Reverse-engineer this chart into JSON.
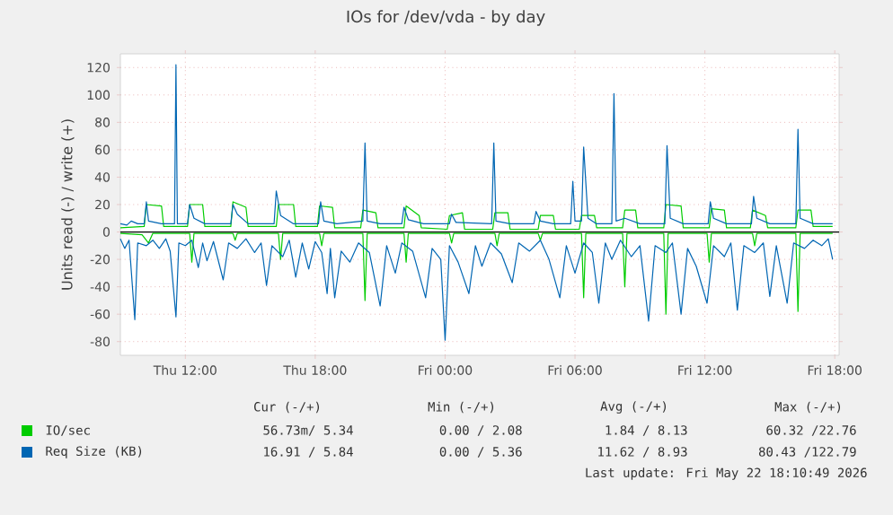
{
  "chart_data": {
    "type": "line",
    "title": "IOs for /dev/vda - by day",
    "ylabel": "Units read (-) / write (+)",
    "xlim": [
      "2026-05-21T09:00",
      "2026-05-22T18:12"
    ],
    "ylim": [
      -90,
      130
    ],
    "xticks": [
      {
        "value": "2026-05-21T12:00",
        "label": "Thu 12:00"
      },
      {
        "value": "2026-05-21T18:00",
        "label": "Thu 18:00"
      },
      {
        "value": "2026-05-22T00:00",
        "label": "Fri 00:00"
      },
      {
        "value": "2026-05-22T06:00",
        "label": "Fri 06:00"
      },
      {
        "value": "2026-05-22T12:00",
        "label": "Fri 12:00"
      },
      {
        "value": "2026-05-22T18:00",
        "label": "Fri 18:00"
      }
    ],
    "yticks": [
      -80,
      -60,
      -40,
      -20,
      0,
      20,
      40,
      60,
      80,
      100,
      120
    ],
    "grid": true,
    "legend": "bottom",
    "ref_lines": [
      {
        "axis": "y",
        "value": 0,
        "color": "#000000"
      }
    ],
    "series": [
      {
        "name": "IO/sec",
        "color": "#00cc00",
        "x": [
          "2026-05-21T09:00",
          "2026-05-21T10:06",
          "2026-05-21T10:12",
          "2026-05-21T10:54",
          "2026-05-21T11:00",
          "2026-05-21T12:06",
          "2026-05-21T12:12",
          "2026-05-21T12:48",
          "2026-05-21T12:54",
          "2026-05-21T14:06",
          "2026-05-21T14:12",
          "2026-05-21T14:48",
          "2026-05-21T14:54",
          "2026-05-21T16:12",
          "2026-05-21T16:18",
          "2026-05-21T17:00",
          "2026-05-21T17:06",
          "2026-05-21T18:06",
          "2026-05-21T18:12",
          "2026-05-21T18:48",
          "2026-05-21T18:54",
          "2026-05-21T20:06",
          "2026-05-21T20:12",
          "2026-05-21T20:48",
          "2026-05-21T20:54",
          "2026-05-21T22:06",
          "2026-05-21T22:12",
          "2026-05-21T22:48",
          "2026-05-21T22:54",
          "2026-05-22T00:06",
          "2026-05-22T00:12",
          "2026-05-22T00:48",
          "2026-05-22T00:54",
          "2026-05-22T02:12",
          "2026-05-22T02:18",
          "2026-05-22T02:54",
          "2026-05-22T03:00",
          "2026-05-22T04:18",
          "2026-05-22T04:24",
          "2026-05-22T05:00",
          "2026-05-22T05:06",
          "2026-05-22T06:12",
          "2026-05-22T06:18",
          "2026-05-22T06:54",
          "2026-05-22T07:00",
          "2026-05-22T08:12",
          "2026-05-22T08:18",
          "2026-05-22T08:48",
          "2026-05-22T08:54",
          "2026-05-22T10:06",
          "2026-05-22T10:12",
          "2026-05-22T10:54",
          "2026-05-22T11:00",
          "2026-05-22T12:12",
          "2026-05-22T12:18",
          "2026-05-22T12:54",
          "2026-05-22T13:00",
          "2026-05-22T14:06",
          "2026-05-22T14:12",
          "2026-05-22T14:48",
          "2026-05-22T14:54",
          "2026-05-22T16:12",
          "2026-05-22T16:18",
          "2026-05-22T16:54",
          "2026-05-22T17:00",
          "2026-05-22T17:54"
        ],
        "values": [
          3,
          4,
          20,
          19,
          4,
          4,
          20,
          20,
          4,
          4,
          22,
          18,
          4,
          4,
          20,
          20,
          4,
          4,
          19,
          18,
          3,
          3,
          16,
          14,
          3,
          3,
          19,
          12,
          3,
          2,
          12,
          14,
          2,
          2,
          14,
          14,
          2,
          2,
          12,
          12,
          2,
          2,
          12,
          12,
          3,
          3,
          16,
          16,
          3,
          3,
          20,
          19,
          3,
          3,
          17,
          16,
          3,
          3,
          16,
          12,
          3,
          3,
          16,
          16,
          4,
          4
        ]
      },
      {
        "color": "#00cc00",
        "x": [
          "2026-05-21T09:00",
          "2026-05-21T10:00",
          "2026-05-21T10:18",
          "2026-05-21T10:30",
          "2026-05-21T12:12",
          "2026-05-21T12:18",
          "2026-05-21T12:24",
          "2026-05-21T14:12",
          "2026-05-21T14:18",
          "2026-05-21T14:24",
          "2026-05-21T16:18",
          "2026-05-21T16:24",
          "2026-05-21T16:30",
          "2026-05-21T18:12",
          "2026-05-21T18:18",
          "2026-05-21T18:24",
          "2026-05-21T20:12",
          "2026-05-21T20:18",
          "2026-05-21T20:24",
          "2026-05-21T22:06",
          "2026-05-21T22:12",
          "2026-05-21T22:18",
          "2026-05-22T00:12",
          "2026-05-22T00:18",
          "2026-05-22T00:24",
          "2026-05-22T02:18",
          "2026-05-22T02:24",
          "2026-05-22T02:30",
          "2026-05-22T04:18",
          "2026-05-22T04:24",
          "2026-05-22T04:30",
          "2026-05-22T06:18",
          "2026-05-22T06:24",
          "2026-05-22T06:30",
          "2026-05-22T08:12",
          "2026-05-22T08:18",
          "2026-05-22T08:24",
          "2026-05-22T10:06",
          "2026-05-22T10:12",
          "2026-05-22T10:18",
          "2026-05-22T12:06",
          "2026-05-22T12:12",
          "2026-05-22T12:18",
          "2026-05-22T14:12",
          "2026-05-22T14:18",
          "2026-05-22T14:24",
          "2026-05-22T16:12",
          "2026-05-22T16:18",
          "2026-05-22T16:24",
          "2026-05-22T17:54"
        ],
        "values": [
          -1,
          -2,
          -8,
          -1,
          -1,
          -22,
          -1,
          -1,
          -6,
          -1,
          -1,
          -20,
          -1,
          -1,
          -10,
          -1,
          -1,
          -50,
          -1,
          -1,
          -22,
          -1,
          -1,
          -8,
          -1,
          -1,
          -10,
          -1,
          -1,
          -6,
          -1,
          -1,
          -48,
          -1,
          -1,
          -40,
          -1,
          -1,
          -60,
          -1,
          -1,
          -22,
          -1,
          -1,
          -10,
          -1,
          -1,
          -58,
          -1,
          -1
        ]
      },
      {
        "name": "Req Size (KB)",
        "color": "#0066b3",
        "x": [
          "2026-05-21T09:00",
          "2026-05-21T09:18",
          "2026-05-21T09:30",
          "2026-05-21T09:48",
          "2026-05-21T10:06",
          "2026-05-21T10:12",
          "2026-05-21T10:18",
          "2026-05-21T10:54",
          "2026-05-21T11:30",
          "2026-05-21T11:34",
          "2026-05-21T11:38",
          "2026-05-21T12:06",
          "2026-05-21T12:12",
          "2026-05-21T12:24",
          "2026-05-21T12:54",
          "2026-05-21T14:06",
          "2026-05-21T14:12",
          "2026-05-21T14:24",
          "2026-05-21T14:54",
          "2026-05-21T16:06",
          "2026-05-21T16:12",
          "2026-05-21T16:24",
          "2026-05-21T17:00",
          "2026-05-21T18:09",
          "2026-05-21T18:15",
          "2026-05-21T18:24",
          "2026-05-21T19:00",
          "2026-05-21T20:12",
          "2026-05-21T20:18",
          "2026-05-21T20:24",
          "2026-05-21T21:00",
          "2026-05-21T22:00",
          "2026-05-21T22:06",
          "2026-05-21T22:18",
          "2026-05-21T23:00",
          "2026-05-22T00:12",
          "2026-05-22T00:18",
          "2026-05-22T00:30",
          "2026-05-22T02:09",
          "2026-05-22T02:15",
          "2026-05-22T02:21",
          "2026-05-22T03:00",
          "2026-05-22T04:06",
          "2026-05-22T04:12",
          "2026-05-22T04:24",
          "2026-05-22T05:00",
          "2026-05-22T05:48",
          "2026-05-22T05:54",
          "2026-05-22T06:00",
          "2026-05-22T06:18",
          "2026-05-22T06:24",
          "2026-05-22T06:36",
          "2026-05-22T07:00",
          "2026-05-22T07:42",
          "2026-05-22T07:48",
          "2026-05-22T07:54",
          "2026-05-22T08:18",
          "2026-05-22T09:00",
          "2026-05-22T10:09",
          "2026-05-22T10:15",
          "2026-05-22T10:24",
          "2026-05-22T11:00",
          "2026-05-22T12:09",
          "2026-05-22T12:15",
          "2026-05-22T12:24",
          "2026-05-22T13:00",
          "2026-05-22T14:09",
          "2026-05-22T14:15",
          "2026-05-22T14:24",
          "2026-05-22T15:00",
          "2026-05-22T16:12",
          "2026-05-22T16:18",
          "2026-05-22T16:24",
          "2026-05-22T17:00",
          "2026-05-22T17:54"
        ],
        "values": [
          6,
          5,
          8,
          6,
          6,
          22,
          8,
          6,
          6,
          122,
          6,
          6,
          20,
          10,
          6,
          6,
          20,
          13,
          6,
          6,
          30,
          12,
          6,
          6,
          22,
          8,
          6,
          8,
          65,
          8,
          6,
          6,
          18,
          9,
          6,
          6,
          13,
          7,
          6,
          65,
          8,
          6,
          6,
          15,
          8,
          6,
          6,
          37,
          8,
          8,
          62,
          10,
          6,
          6,
          101,
          8,
          10,
          6,
          6,
          63,
          10,
          6,
          6,
          22,
          10,
          6,
          6,
          26,
          10,
          6,
          6,
          75,
          10,
          6,
          6
        ]
      },
      {
        "color": "#0066b3",
        "x": [
          "2026-05-21T09:00",
          "2026-05-21T09:12",
          "2026-05-21T09:24",
          "2026-05-21T09:40",
          "2026-05-21T09:48",
          "2026-05-21T10:12",
          "2026-05-21T10:30",
          "2026-05-21T10:48",
          "2026-05-21T11:06",
          "2026-05-21T11:18",
          "2026-05-21T11:34",
          "2026-05-21T11:42",
          "2026-05-21T12:00",
          "2026-05-21T12:18",
          "2026-05-21T12:36",
          "2026-05-21T12:48",
          "2026-05-21T13:00",
          "2026-05-21T13:18",
          "2026-05-21T13:45",
          "2026-05-21T14:00",
          "2026-05-21T14:24",
          "2026-05-21T14:48",
          "2026-05-21T15:12",
          "2026-05-21T15:30",
          "2026-05-21T15:45",
          "2026-05-21T16:00",
          "2026-05-21T16:30",
          "2026-05-21T16:48",
          "2026-05-21T17:06",
          "2026-05-21T17:24",
          "2026-05-21T17:42",
          "2026-05-21T18:00",
          "2026-05-21T18:18",
          "2026-05-21T18:33",
          "2026-05-21T18:42",
          "2026-05-21T18:54",
          "2026-05-21T19:12",
          "2026-05-21T19:36",
          "2026-05-21T20:00",
          "2026-05-21T20:30",
          "2026-05-21T21:00",
          "2026-05-21T21:18",
          "2026-05-21T21:42",
          "2026-05-21T22:00",
          "2026-05-21T22:30",
          "2026-05-21T23:06",
          "2026-05-21T23:24",
          "2026-05-21T23:48",
          "2026-05-22T00:00",
          "2026-05-22T00:12",
          "2026-05-22T00:36",
          "2026-05-22T01:06",
          "2026-05-22T01:24",
          "2026-05-22T01:42",
          "2026-05-22T02:06",
          "2026-05-22T02:36",
          "2026-05-22T03:06",
          "2026-05-22T03:24",
          "2026-05-22T03:54",
          "2026-05-22T04:24",
          "2026-05-22T04:48",
          "2026-05-22T05:18",
          "2026-05-22T05:36",
          "2026-05-22T06:00",
          "2026-05-22T06:24",
          "2026-05-22T06:48",
          "2026-05-22T07:06",
          "2026-05-22T07:24",
          "2026-05-22T07:42",
          "2026-05-22T08:06",
          "2026-05-22T08:36",
          "2026-05-22T09:00",
          "2026-05-22T09:24",
          "2026-05-22T09:42",
          "2026-05-22T10:12",
          "2026-05-22T10:30",
          "2026-05-22T10:54",
          "2026-05-22T11:12",
          "2026-05-22T11:36",
          "2026-05-22T12:06",
          "2026-05-22T12:24",
          "2026-05-22T12:54",
          "2026-05-22T13:12",
          "2026-05-22T13:30",
          "2026-05-22T13:48",
          "2026-05-22T14:18",
          "2026-05-22T14:42",
          "2026-05-22T15:00",
          "2026-05-22T15:18",
          "2026-05-22T15:48",
          "2026-05-22T16:06",
          "2026-05-22T16:36",
          "2026-05-22T17:00",
          "2026-05-22T17:24",
          "2026-05-22T17:42",
          "2026-05-22T17:54"
        ],
        "values": [
          -5,
          -12,
          -6,
          -64,
          -8,
          -10,
          -6,
          -12,
          -5,
          -14,
          -62,
          -8,
          -10,
          -6,
          -26,
          -8,
          -21,
          -7,
          -35,
          -8,
          -12,
          -5,
          -15,
          -8,
          -39,
          -10,
          -18,
          -6,
          -33,
          -8,
          -27,
          -7,
          -15,
          -45,
          -12,
          -48,
          -14,
          -22,
          -8,
          -15,
          -54,
          -10,
          -30,
          -8,
          -14,
          -48,
          -12,
          -20,
          -79,
          -10,
          -22,
          -45,
          -10,
          -25,
          -8,
          -16,
          -37,
          -8,
          -14,
          -6,
          -20,
          -48,
          -10,
          -30,
          -8,
          -15,
          -52,
          -8,
          -20,
          -6,
          -18,
          -10,
          -65,
          -10,
          -15,
          -8,
          -60,
          -12,
          -25,
          -52,
          -10,
          -18,
          -8,
          -57,
          -10,
          -15,
          -8,
          -47,
          -10,
          -52,
          -8,
          -12,
          -6,
          -10,
          -5,
          -20
        ]
      }
    ],
    "annotations": [
      "Cur (-/+)",
      "Min (-/+)",
      "Avg (-/+)",
      "Max (-/+)",
      "56.73m/ 5.34",
      "0.00 / 2.08",
      "1.84 / 8.13",
      "60.32 /22.76",
      "16.91 / 5.84",
      "0.00 / 5.36",
      "11.62 / 8.93",
      "80.43 /122.79",
      "Last update: Fri May 22 18:10:49 2026"
    ]
  }
}
